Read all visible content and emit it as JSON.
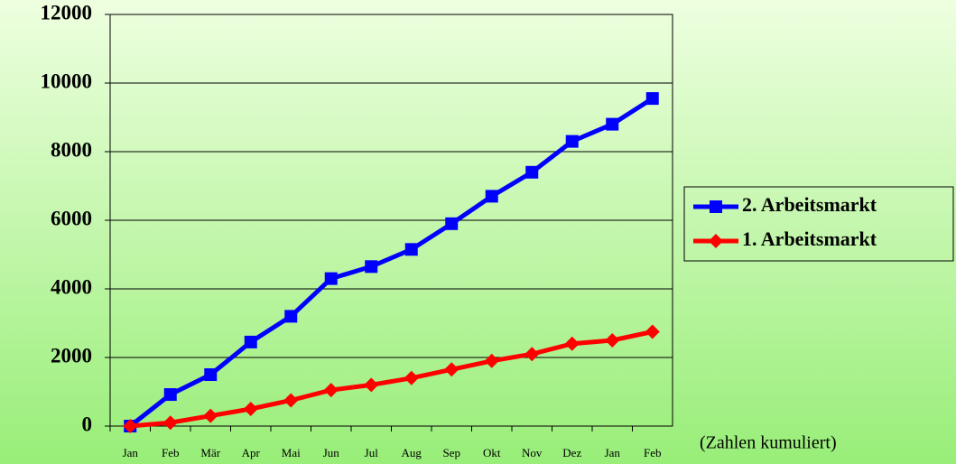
{
  "chart_data": {
    "type": "line",
    "categories": [
      "Jan",
      "Feb",
      "Mär",
      "Apr",
      "Mai",
      "Jun",
      "Jul",
      "Aug",
      "Sep",
      "Okt",
      "Nov",
      "Dez",
      "Jan",
      "Feb"
    ],
    "series": [
      {
        "name": "2. Arbeitsmarkt",
        "color": "#0000ff",
        "marker": "square",
        "values": [
          0,
          920,
          1500,
          2450,
          3200,
          4300,
          4650,
          5150,
          5900,
          6700,
          7400,
          8300,
          8800,
          9550
        ]
      },
      {
        "name": "1. Arbeitsmarkt",
        "color": "#ff0000",
        "marker": "diamond",
        "values": [
          0,
          100,
          300,
          500,
          750,
          1050,
          1200,
          1400,
          1650,
          1900,
          2100,
          2400,
          2500,
          2750
        ]
      }
    ],
    "ylim": [
      0,
      12000
    ],
    "yticks": [
      0,
      2000,
      4000,
      6000,
      8000,
      10000,
      12000
    ],
    "grid": true,
    "legend": "right",
    "annotation": "(Zahlen kumuliert)"
  }
}
